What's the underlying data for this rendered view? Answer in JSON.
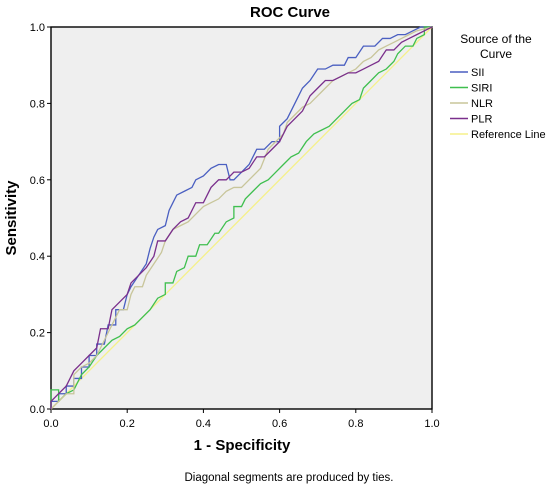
{
  "chart_data": {
    "type": "line",
    "title": "ROC Curve",
    "xlabel": "1 - Specificity",
    "ylabel": "Sensitivity",
    "xlim": [
      0,
      1
    ],
    "ylim": [
      0,
      1
    ],
    "x_ticks": [
      "0.0",
      "0.2",
      "0.4",
      "0.6",
      "0.8",
      "1.0"
    ],
    "y_ticks": [
      "0.0",
      "0.2",
      "0.4",
      "0.6",
      "0.8",
      "1.0"
    ],
    "grid": false,
    "plot_background": "#efefef",
    "legend": {
      "title": "Source of the Curve",
      "title_lines": [
        "Source of the",
        "Curve"
      ],
      "position": "right"
    },
    "footnote": "Diagonal segments are produced by ties.",
    "series": [
      {
        "name": "SII",
        "color": "#4a5fc1",
        "points": [
          [
            0,
            0
          ],
          [
            0,
            0.02
          ],
          [
            0.02,
            0.02
          ],
          [
            0.02,
            0.04
          ],
          [
            0.04,
            0.04
          ],
          [
            0.04,
            0.06
          ],
          [
            0.06,
            0.06
          ],
          [
            0.06,
            0.08
          ],
          [
            0.08,
            0.08
          ],
          [
            0.08,
            0.11
          ],
          [
            0.1,
            0.11
          ],
          [
            0.1,
            0.14
          ],
          [
            0.12,
            0.14
          ],
          [
            0.12,
            0.17
          ],
          [
            0.14,
            0.17
          ],
          [
            0.15,
            0.22
          ],
          [
            0.17,
            0.22
          ],
          [
            0.17,
            0.26
          ],
          [
            0.19,
            0.26
          ],
          [
            0.2,
            0.3
          ],
          [
            0.21,
            0.32
          ],
          [
            0.23,
            0.35
          ],
          [
            0.25,
            0.38
          ],
          [
            0.26,
            0.42
          ],
          [
            0.27,
            0.45
          ],
          [
            0.28,
            0.47
          ],
          [
            0.3,
            0.48
          ],
          [
            0.31,
            0.52
          ],
          [
            0.32,
            0.54
          ],
          [
            0.33,
            0.56
          ],
          [
            0.35,
            0.57
          ],
          [
            0.37,
            0.58
          ],
          [
            0.38,
            0.6
          ],
          [
            0.4,
            0.61
          ],
          [
            0.42,
            0.63
          ],
          [
            0.44,
            0.64
          ],
          [
            0.46,
            0.64
          ],
          [
            0.47,
            0.6
          ],
          [
            0.48,
            0.6
          ],
          [
            0.5,
            0.62
          ],
          [
            0.52,
            0.64
          ],
          [
            0.54,
            0.68
          ],
          [
            0.56,
            0.68
          ],
          [
            0.58,
            0.7
          ],
          [
            0.6,
            0.7
          ],
          [
            0.6,
            0.74
          ],
          [
            0.62,
            0.76
          ],
          [
            0.64,
            0.8
          ],
          [
            0.66,
            0.84
          ],
          [
            0.68,
            0.86
          ],
          [
            0.7,
            0.89
          ],
          [
            0.72,
            0.89
          ],
          [
            0.74,
            0.9
          ],
          [
            0.77,
            0.9
          ],
          [
            0.78,
            0.92
          ],
          [
            0.8,
            0.92
          ],
          [
            0.82,
            0.95
          ],
          [
            0.85,
            0.95
          ],
          [
            0.87,
            0.97
          ],
          [
            0.89,
            0.97
          ],
          [
            0.91,
            0.98
          ],
          [
            0.93,
            0.98
          ],
          [
            0.95,
            0.99
          ],
          [
            0.97,
            1.0
          ],
          [
            1.0,
            1.0
          ]
        ]
      },
      {
        "name": "SIRI",
        "color": "#3fbf4f",
        "points": [
          [
            0,
            0
          ],
          [
            0,
            0.05
          ],
          [
            0.02,
            0.05
          ],
          [
            0.02,
            0.02
          ],
          [
            0.04,
            0.04
          ],
          [
            0.06,
            0.05
          ],
          [
            0.08,
            0.09
          ],
          [
            0.1,
            0.11
          ],
          [
            0.12,
            0.14
          ],
          [
            0.14,
            0.16
          ],
          [
            0.16,
            0.18
          ],
          [
            0.18,
            0.19
          ],
          [
            0.2,
            0.21
          ],
          [
            0.22,
            0.22
          ],
          [
            0.24,
            0.24
          ],
          [
            0.26,
            0.26
          ],
          [
            0.28,
            0.29
          ],
          [
            0.3,
            0.3
          ],
          [
            0.3,
            0.33
          ],
          [
            0.32,
            0.33
          ],
          [
            0.33,
            0.36
          ],
          [
            0.35,
            0.37
          ],
          [
            0.36,
            0.4
          ],
          [
            0.38,
            0.4
          ],
          [
            0.39,
            0.43
          ],
          [
            0.41,
            0.43
          ],
          [
            0.43,
            0.46
          ],
          [
            0.44,
            0.46
          ],
          [
            0.46,
            0.49
          ],
          [
            0.48,
            0.5
          ],
          [
            0.48,
            0.53
          ],
          [
            0.5,
            0.53
          ],
          [
            0.51,
            0.55
          ],
          [
            0.53,
            0.57
          ],
          [
            0.55,
            0.59
          ],
          [
            0.57,
            0.6
          ],
          [
            0.59,
            0.62
          ],
          [
            0.61,
            0.64
          ],
          [
            0.63,
            0.66
          ],
          [
            0.65,
            0.67
          ],
          [
            0.67,
            0.7
          ],
          [
            0.69,
            0.72
          ],
          [
            0.71,
            0.73
          ],
          [
            0.73,
            0.74
          ],
          [
            0.75,
            0.76
          ],
          [
            0.77,
            0.78
          ],
          [
            0.79,
            0.8
          ],
          [
            0.81,
            0.81
          ],
          [
            0.82,
            0.84
          ],
          [
            0.84,
            0.86
          ],
          [
            0.86,
            0.88
          ],
          [
            0.88,
            0.89
          ],
          [
            0.9,
            0.91
          ],
          [
            0.91,
            0.93
          ],
          [
            0.93,
            0.95
          ],
          [
            0.95,
            0.95
          ],
          [
            0.96,
            0.97
          ],
          [
            0.98,
            0.98
          ],
          [
            0.98,
            1.0
          ],
          [
            1.0,
            1.0
          ]
        ]
      },
      {
        "name": "NLR",
        "color": "#c8c59a",
        "points": [
          [
            0,
            0
          ],
          [
            0.02,
            0.02
          ],
          [
            0.04,
            0.04
          ],
          [
            0.06,
            0.04
          ],
          [
            0.06,
            0.09
          ],
          [
            0.08,
            0.11
          ],
          [
            0.1,
            0.12
          ],
          [
            0.12,
            0.14
          ],
          [
            0.14,
            0.18
          ],
          [
            0.16,
            0.22
          ],
          [
            0.17,
            0.24
          ],
          [
            0.18,
            0.26
          ],
          [
            0.2,
            0.26
          ],
          [
            0.21,
            0.3
          ],
          [
            0.22,
            0.32
          ],
          [
            0.24,
            0.32
          ],
          [
            0.25,
            0.35
          ],
          [
            0.27,
            0.38
          ],
          [
            0.29,
            0.41
          ],
          [
            0.3,
            0.44
          ],
          [
            0.32,
            0.47
          ],
          [
            0.34,
            0.48
          ],
          [
            0.36,
            0.49
          ],
          [
            0.38,
            0.51
          ],
          [
            0.4,
            0.53
          ],
          [
            0.42,
            0.54
          ],
          [
            0.44,
            0.55
          ],
          [
            0.46,
            0.57
          ],
          [
            0.48,
            0.58
          ],
          [
            0.5,
            0.58
          ],
          [
            0.52,
            0.6
          ],
          [
            0.54,
            0.62
          ],
          [
            0.55,
            0.63
          ],
          [
            0.57,
            0.68
          ],
          [
            0.59,
            0.7
          ],
          [
            0.61,
            0.72
          ],
          [
            0.62,
            0.75
          ],
          [
            0.64,
            0.77
          ],
          [
            0.66,
            0.79
          ],
          [
            0.68,
            0.8
          ],
          [
            0.7,
            0.82
          ],
          [
            0.72,
            0.84
          ],
          [
            0.74,
            0.86
          ],
          [
            0.76,
            0.87
          ],
          [
            0.78,
            0.88
          ],
          [
            0.8,
            0.89
          ],
          [
            0.82,
            0.91
          ],
          [
            0.84,
            0.92
          ],
          [
            0.86,
            0.94
          ],
          [
            0.88,
            0.95
          ],
          [
            0.9,
            0.96
          ],
          [
            0.92,
            0.97
          ],
          [
            0.94,
            0.98
          ],
          [
            0.96,
            0.99
          ],
          [
            1.0,
            1.0
          ]
        ]
      },
      {
        "name": "PLR",
        "color": "#7a2f8c",
        "points": [
          [
            0,
            0
          ],
          [
            0,
            0.02
          ],
          [
            0.02,
            0.04
          ],
          [
            0.04,
            0.06
          ],
          [
            0.06,
            0.1
          ],
          [
            0.08,
            0.12
          ],
          [
            0.1,
            0.14
          ],
          [
            0.12,
            0.16
          ],
          [
            0.13,
            0.21
          ],
          [
            0.15,
            0.21
          ],
          [
            0.16,
            0.26
          ],
          [
            0.18,
            0.28
          ],
          [
            0.2,
            0.3
          ],
          [
            0.21,
            0.33
          ],
          [
            0.23,
            0.35
          ],
          [
            0.25,
            0.37
          ],
          [
            0.27,
            0.4
          ],
          [
            0.28,
            0.44
          ],
          [
            0.3,
            0.44
          ],
          [
            0.32,
            0.47
          ],
          [
            0.34,
            0.49
          ],
          [
            0.36,
            0.5
          ],
          [
            0.38,
            0.54
          ],
          [
            0.4,
            0.54
          ],
          [
            0.42,
            0.58
          ],
          [
            0.44,
            0.6
          ],
          [
            0.46,
            0.6
          ],
          [
            0.48,
            0.62
          ],
          [
            0.5,
            0.62
          ],
          [
            0.52,
            0.63
          ],
          [
            0.54,
            0.66
          ],
          [
            0.56,
            0.66
          ],
          [
            0.58,
            0.68
          ],
          [
            0.6,
            0.7
          ],
          [
            0.62,
            0.74
          ],
          [
            0.64,
            0.76
          ],
          [
            0.66,
            0.78
          ],
          [
            0.68,
            0.82
          ],
          [
            0.7,
            0.84
          ],
          [
            0.72,
            0.86
          ],
          [
            0.74,
            0.86
          ],
          [
            0.76,
            0.87
          ],
          [
            0.78,
            0.88
          ],
          [
            0.8,
            0.88
          ],
          [
            0.82,
            0.89
          ],
          [
            0.84,
            0.9
          ],
          [
            0.86,
            0.91
          ],
          [
            0.88,
            0.94
          ],
          [
            0.9,
            0.94
          ],
          [
            0.92,
            0.96
          ],
          [
            0.94,
            0.97
          ],
          [
            0.96,
            0.98
          ],
          [
            0.98,
            0.99
          ],
          [
            1.0,
            1.0
          ]
        ]
      },
      {
        "name": "Reference Line",
        "color": "#f5f08a",
        "points": [
          [
            0,
            0
          ],
          [
            1,
            1
          ]
        ]
      }
    ]
  }
}
